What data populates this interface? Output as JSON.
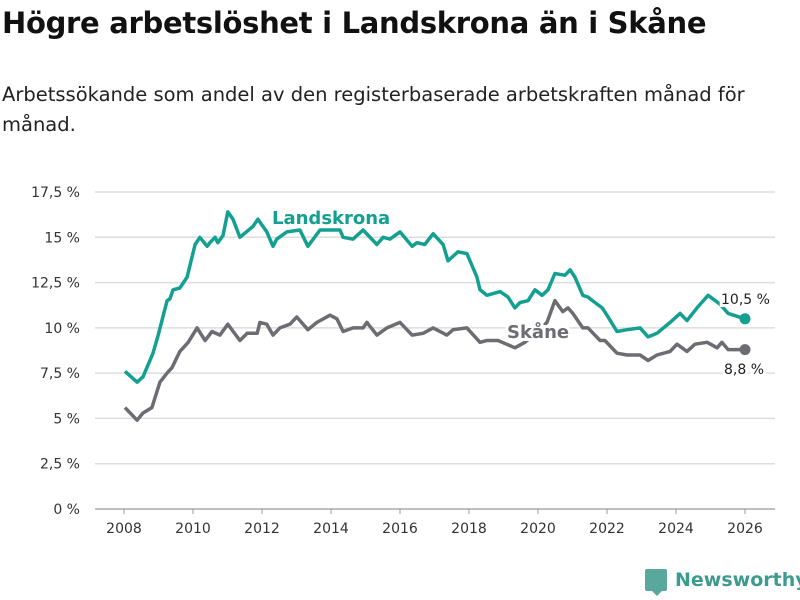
{
  "title": "Högre arbetslöshet i Landskrona än i Skåne",
  "subtitle": "Arbetssökande som andel av den registerbaserade arbetskraften månad för månad.",
  "brand": "Newsworthy",
  "chart_data": {
    "type": "line",
    "ylim": [
      0,
      17.5
    ],
    "xlim": [
      2007.15,
      2026.9
    ],
    "yticks": [
      0,
      2.5,
      5,
      7.5,
      10,
      12.5,
      15,
      17.5
    ],
    "ytick_labels": [
      "0 %",
      "2,5 %",
      "5 %",
      "7,5 %",
      "10 %",
      "12,5 %",
      "15 %",
      "17,5 %"
    ],
    "xticks": [
      2008,
      2010,
      2012,
      2014,
      2016,
      2018,
      2020,
      2022,
      2024,
      2026
    ],
    "xtick_labels": [
      "2008",
      "2010",
      "2012",
      "2014",
      "2016",
      "2018",
      "2020",
      "2022",
      "2024",
      "2026"
    ],
    "grid": true,
    "series": [
      {
        "name": "Landskrona",
        "color": "#13a091",
        "end_label": "10,5 %",
        "points": [
          [
            2008.03,
            7.6
          ],
          [
            2008.38,
            7.0
          ],
          [
            2008.55,
            7.3
          ],
          [
            2008.84,
            8.6
          ],
          [
            2008.99,
            9.6
          ],
          [
            2009.25,
            11.5
          ],
          [
            2009.33,
            11.6
          ],
          [
            2009.42,
            12.1
          ],
          [
            2009.62,
            12.2
          ],
          [
            2009.83,
            12.8
          ],
          [
            2010.06,
            14.6
          ],
          [
            2010.2,
            15.0
          ],
          [
            2010.41,
            14.5
          ],
          [
            2010.49,
            14.7
          ],
          [
            2010.64,
            15.0
          ],
          [
            2010.72,
            14.7
          ],
          [
            2010.87,
            15.1
          ],
          [
            2011.01,
            16.4
          ],
          [
            2011.16,
            16.0
          ],
          [
            2011.36,
            15.0
          ],
          [
            2011.74,
            15.6
          ],
          [
            2011.88,
            16.0
          ],
          [
            2012.14,
            15.3
          ],
          [
            2012.32,
            14.5
          ],
          [
            2012.43,
            14.9
          ],
          [
            2012.72,
            15.3
          ],
          [
            2013.1,
            15.4
          ],
          [
            2013.33,
            14.5
          ],
          [
            2013.68,
            15.4
          ],
          [
            2014.26,
            15.4
          ],
          [
            2014.35,
            15.0
          ],
          [
            2014.64,
            14.9
          ],
          [
            2014.93,
            15.4
          ],
          [
            2015.33,
            14.6
          ],
          [
            2015.51,
            15.0
          ],
          [
            2015.71,
            14.9
          ],
          [
            2016.0,
            15.3
          ],
          [
            2016.35,
            14.5
          ],
          [
            2016.49,
            14.7
          ],
          [
            2016.72,
            14.6
          ],
          [
            2016.96,
            15.2
          ],
          [
            2017.25,
            14.6
          ],
          [
            2017.39,
            13.7
          ],
          [
            2017.68,
            14.2
          ],
          [
            2017.94,
            14.1
          ],
          [
            2018.23,
            12.8
          ],
          [
            2018.32,
            12.1
          ],
          [
            2018.52,
            11.8
          ],
          [
            2018.9,
            12.0
          ],
          [
            2019.13,
            11.7
          ],
          [
            2019.33,
            11.1
          ],
          [
            2019.48,
            11.4
          ],
          [
            2019.71,
            11.5
          ],
          [
            2019.91,
            12.1
          ],
          [
            2020.12,
            11.8
          ],
          [
            2020.29,
            12.1
          ],
          [
            2020.49,
            13.0
          ],
          [
            2020.78,
            12.9
          ],
          [
            2020.93,
            13.2
          ],
          [
            2021.07,
            12.8
          ],
          [
            2021.3,
            11.8
          ],
          [
            2021.45,
            11.7
          ],
          [
            2021.65,
            11.4
          ],
          [
            2021.86,
            11.1
          ],
          [
            2022.0,
            10.7
          ],
          [
            2022.29,
            9.8
          ],
          [
            2022.58,
            9.9
          ],
          [
            2022.96,
            10.0
          ],
          [
            2023.19,
            9.5
          ],
          [
            2023.45,
            9.7
          ],
          [
            2023.83,
            10.3
          ],
          [
            2024.12,
            10.8
          ],
          [
            2024.32,
            10.4
          ],
          [
            2024.61,
            11.1
          ],
          [
            2024.93,
            11.8
          ],
          [
            2025.28,
            11.3
          ],
          [
            2025.51,
            10.8
          ],
          [
            2026.0,
            10.5
          ]
        ]
      },
      {
        "name": "Skåne",
        "color": "#6d6c72",
        "end_label": "8,8 %",
        "points": [
          [
            2008.03,
            5.6
          ],
          [
            2008.38,
            4.9
          ],
          [
            2008.55,
            5.3
          ],
          [
            2008.81,
            5.6
          ],
          [
            2009.04,
            7.0
          ],
          [
            2009.25,
            7.5
          ],
          [
            2009.39,
            7.8
          ],
          [
            2009.62,
            8.7
          ],
          [
            2009.86,
            9.2
          ],
          [
            2010.12,
            10.0
          ],
          [
            2010.35,
            9.3
          ],
          [
            2010.55,
            9.8
          ],
          [
            2010.78,
            9.6
          ],
          [
            2011.01,
            10.2
          ],
          [
            2011.36,
            9.3
          ],
          [
            2011.57,
            9.7
          ],
          [
            2011.86,
            9.7
          ],
          [
            2011.94,
            10.3
          ],
          [
            2012.14,
            10.2
          ],
          [
            2012.32,
            9.6
          ],
          [
            2012.52,
            10.0
          ],
          [
            2012.81,
            10.2
          ],
          [
            2013.01,
            10.6
          ],
          [
            2013.33,
            9.9
          ],
          [
            2013.59,
            10.3
          ],
          [
            2013.97,
            10.7
          ],
          [
            2014.17,
            10.5
          ],
          [
            2014.35,
            9.8
          ],
          [
            2014.64,
            10.0
          ],
          [
            2014.93,
            10.0
          ],
          [
            2015.04,
            10.3
          ],
          [
            2015.33,
            9.6
          ],
          [
            2015.62,
            10.0
          ],
          [
            2016.0,
            10.3
          ],
          [
            2016.35,
            9.6
          ],
          [
            2016.67,
            9.7
          ],
          [
            2016.96,
            10.0
          ],
          [
            2017.36,
            9.6
          ],
          [
            2017.54,
            9.9
          ],
          [
            2017.94,
            10.0
          ],
          [
            2018.32,
            9.2
          ],
          [
            2018.52,
            9.3
          ],
          [
            2018.84,
            9.3
          ],
          [
            2019.33,
            8.9
          ],
          [
            2019.62,
            9.2
          ],
          [
            2020.26,
            10.3
          ],
          [
            2020.49,
            11.5
          ],
          [
            2020.72,
            10.9
          ],
          [
            2020.87,
            11.1
          ],
          [
            2021.01,
            10.8
          ],
          [
            2021.3,
            10.0
          ],
          [
            2021.45,
            10.0
          ],
          [
            2021.8,
            9.3
          ],
          [
            2021.94,
            9.3
          ],
          [
            2022.29,
            8.6
          ],
          [
            2022.58,
            8.5
          ],
          [
            2022.96,
            8.5
          ],
          [
            2023.19,
            8.2
          ],
          [
            2023.45,
            8.5
          ],
          [
            2023.83,
            8.7
          ],
          [
            2024.03,
            9.1
          ],
          [
            2024.32,
            8.7
          ],
          [
            2024.55,
            9.1
          ],
          [
            2024.9,
            9.2
          ],
          [
            2025.19,
            8.9
          ],
          [
            2025.33,
            9.2
          ],
          [
            2025.51,
            8.8
          ],
          [
            2026.0,
            8.8
          ]
        ]
      }
    ]
  }
}
